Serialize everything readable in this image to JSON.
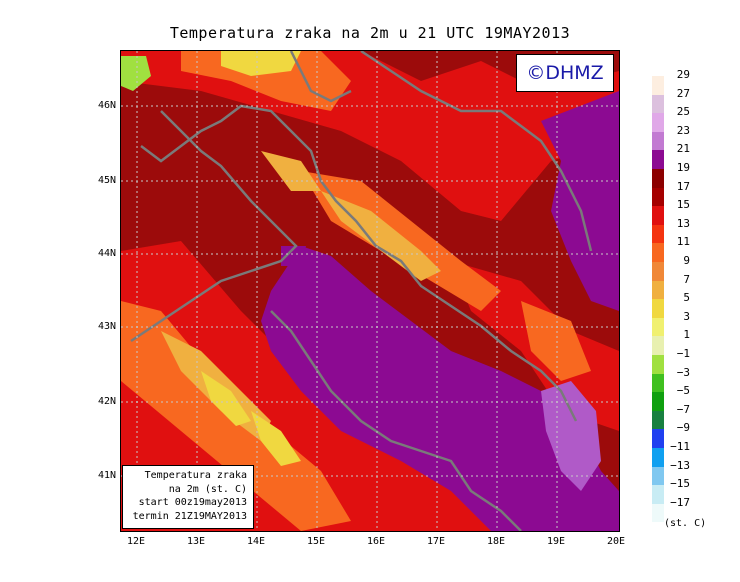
{
  "title": "Temperatura zraka na 2m u 21 UTC 19MAY2013",
  "logo": "©DHMZ",
  "info_box": {
    "line1": "Temperatura zraka",
    "line2": "na 2m (st. C)",
    "line3": "start 00z19may2013",
    "line4": "termin 21Z19MAY2013"
  },
  "axes": {
    "lat_labels": [
      "46N",
      "45N",
      "44N",
      "43N",
      "42N",
      "41N"
    ],
    "lon_labels": [
      "12E",
      "13E",
      "14E",
      "15E",
      "16E",
      "17E",
      "18E",
      "19E",
      "20E"
    ]
  },
  "legend": {
    "units": "(st. C)",
    "labels": [
      "29",
      "27",
      "25",
      "23",
      "21",
      "19",
      "17",
      "15",
      "13",
      "11",
      "9",
      "7",
      "5",
      "3",
      "1",
      "−1",
      "−3",
      "−5",
      "−7",
      "−9",
      "−11",
      "−13",
      "−15",
      "−17"
    ],
    "colors": [
      "#fdeee0",
      "#dcc0de",
      "#e0a8e8",
      "#c27ad2",
      "#8c0a92",
      "#8c0000",
      "#a50000",
      "#e01010",
      "#f43410",
      "#f86820",
      "#f08838",
      "#f0b040",
      "#f0d840",
      "#f0f070",
      "#e8f0b0",
      "#a0e040",
      "#40c020",
      "#10a010",
      "#188040",
      "#2040f0",
      "#10a0f0",
      "#80c8f0",
      "#c8ecf4",
      "#eefafa"
    ]
  },
  "map": {
    "region": "Adriatic Sea and Croatia",
    "colors": {
      "sea": "#8c0a92",
      "sea_warm": "#b05ac8",
      "land_warm": "#9c0b0b",
      "land_mid": "#e01010",
      "land_cool": "#f86820",
      "land_cold": "#f0b040",
      "highland": "#f0d840",
      "alps": "#a0e040",
      "coast": "#7a7a7a"
    }
  }
}
